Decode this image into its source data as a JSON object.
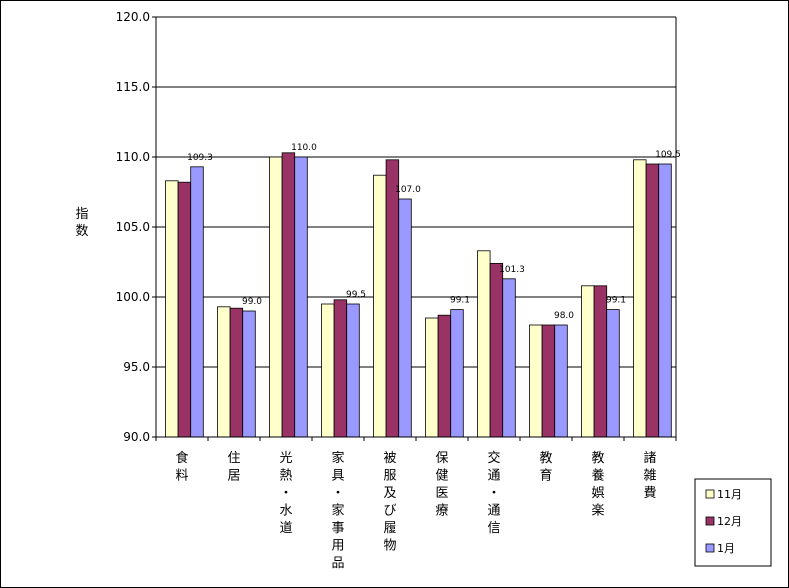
{
  "chart_data": {
    "type": "bar",
    "ylabel": "指数",
    "ylim": [
      90,
      120
    ],
    "yticks": [
      "120.0",
      "115.0",
      "110.0",
      "105.0",
      "100.0",
      "95.0",
      "90.0"
    ],
    "ytick_values": [
      120,
      115,
      110,
      105,
      100,
      95,
      90
    ],
    "categories": [
      "食料",
      "住居",
      "光熱・水道",
      "家具・家事用品",
      "被服及び履物",
      "保健医療",
      "交通・通信",
      "教育",
      "教養娯楽",
      "諸雑費"
    ],
    "series": [
      {
        "name": "11月",
        "color": "#FFFFCC",
        "values": [
          108.3,
          99.3,
          110.0,
          99.5,
          108.7,
          98.5,
          103.3,
          98.0,
          100.8,
          109.8
        ]
      },
      {
        "name": "12月",
        "color": "#993366",
        "values": [
          108.2,
          99.2,
          110.3,
          99.8,
          109.8,
          98.7,
          102.4,
          98.0,
          100.8,
          109.5
        ]
      },
      {
        "name": "1月",
        "color": "#9999FF",
        "values": [
          109.3,
          99.0,
          110.0,
          99.5,
          107.0,
          99.1,
          101.3,
          98.0,
          99.1,
          109.5
        ]
      }
    ],
    "data_labels": {
      "series": "1月",
      "text": [
        "109.3",
        "99.0",
        "110.0",
        "99.5",
        "107.0",
        "99.1",
        "101.3",
        "98.0",
        "99.1",
        "109.5"
      ]
    },
    "grid": true,
    "legend": "bottom-right"
  }
}
